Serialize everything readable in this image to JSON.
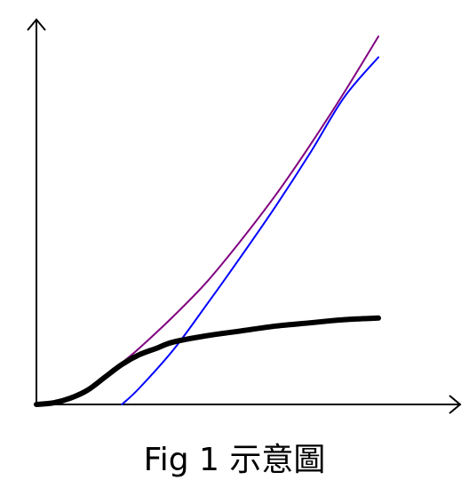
{
  "caption": "Fig 1 示意圖",
  "colors": {
    "axis": "#000000",
    "purple": "#800080",
    "blue": "#0000ff",
    "black": "#000000"
  },
  "chart_data": {
    "type": "line",
    "title": "",
    "xlabel": "",
    "ylabel": "",
    "xlim": [
      0,
      100
    ],
    "ylim": [
      0,
      100
    ],
    "grid": false,
    "legend": "none",
    "series": [
      {
        "color": "#800080",
        "x": [
          0,
          5,
          10,
          15,
          20,
          25,
          30,
          40,
          50,
          60,
          70,
          80,
          90,
          100
        ],
        "y": [
          0,
          0.5,
          2,
          4.5,
          8.5,
          13,
          17.5,
          27.5,
          38.5,
          51.5,
          65.5,
          81,
          97.5,
          115
        ]
      },
      {
        "color": "#0000ff",
        "x": [
          25,
          30,
          40,
          50,
          60,
          70,
          80,
          90,
          100
        ],
        "y": [
          0,
          5,
          17,
          31.5,
          46.5,
          62,
          78.5,
          96,
          108.5
        ]
      },
      {
        "color": "#000000",
        "x": [
          0,
          5,
          10,
          15,
          20,
          25,
          30,
          35,
          40,
          50,
          60,
          70,
          80,
          90,
          100
        ],
        "y": [
          0,
          0.5,
          2,
          4.5,
          8.5,
          12.5,
          15.5,
          17.5,
          19.5,
          21.5,
          23,
          24.5,
          25.5,
          26.5,
          27
        ]
      }
    ]
  }
}
